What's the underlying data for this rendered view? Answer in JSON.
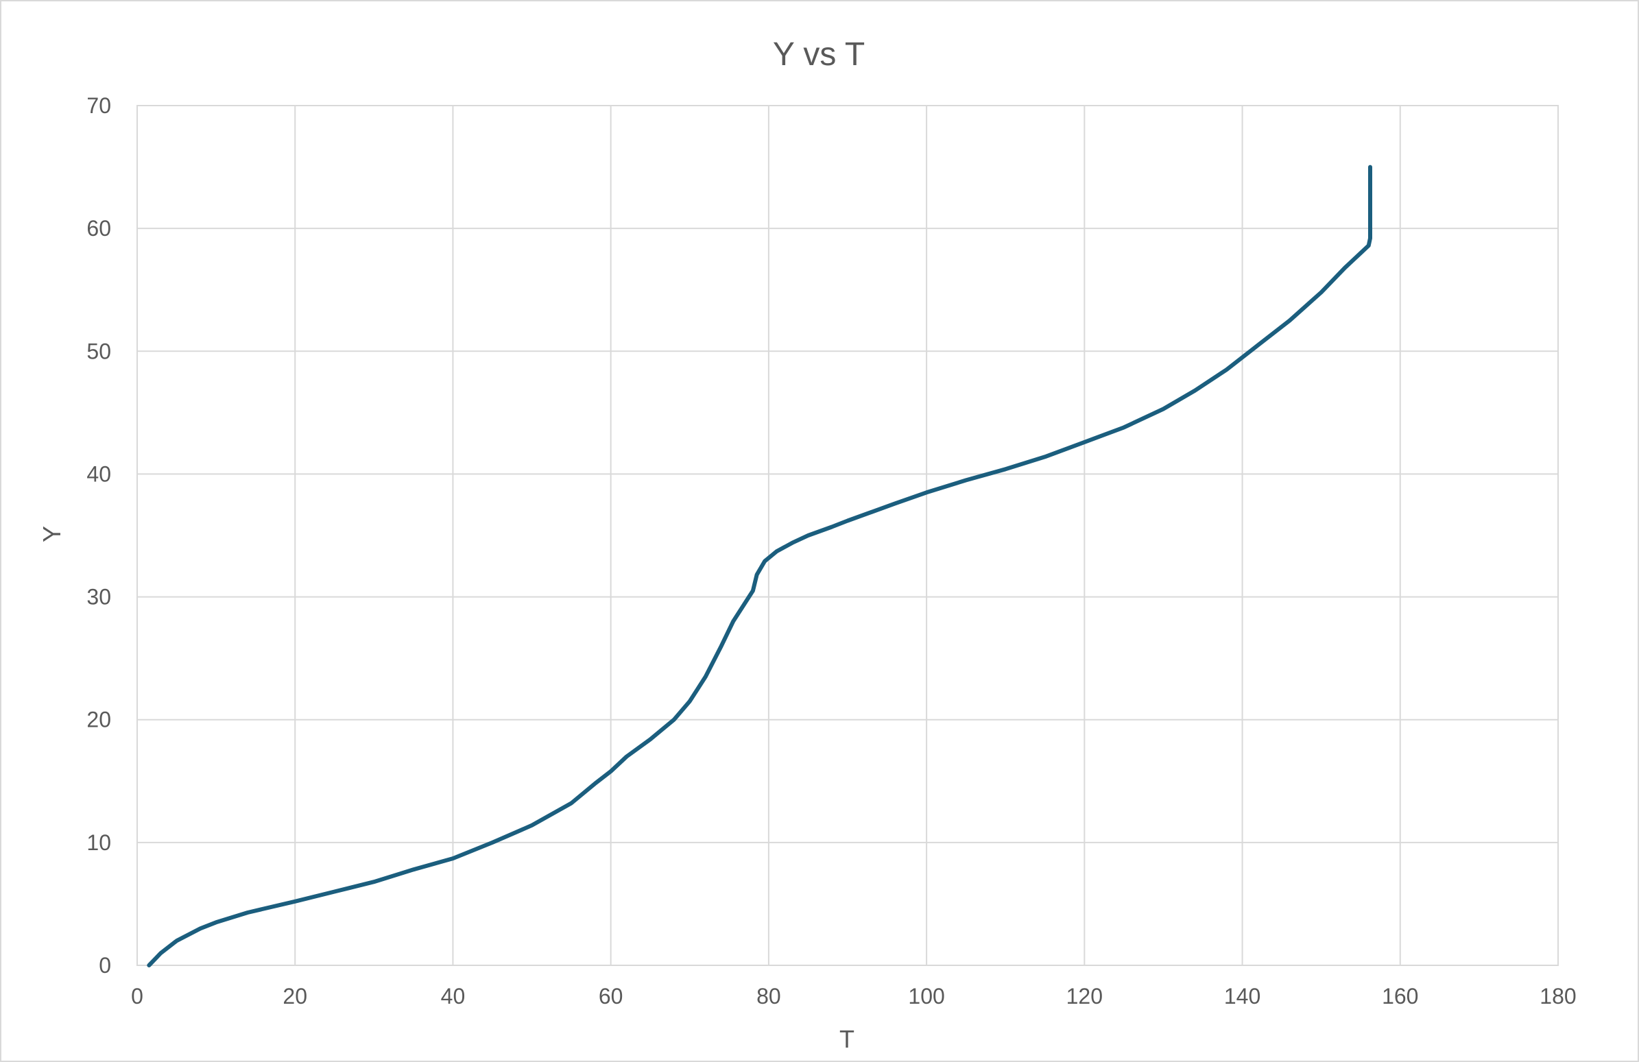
{
  "chart_data": {
    "type": "line",
    "title": "Y vs T",
    "xlabel": "T",
    "ylabel": "Y",
    "xlim": [
      0,
      180
    ],
    "ylim": [
      0,
      70
    ],
    "xticks": [
      0,
      20,
      40,
      60,
      80,
      100,
      120,
      140,
      160,
      180
    ],
    "yticks": [
      0,
      10,
      20,
      30,
      40,
      50,
      60,
      70
    ],
    "grid": true,
    "legend": "none",
    "line_color": "#1b5e7e",
    "series": [
      {
        "x": [
          1.5,
          3,
          5,
          8,
          10,
          14,
          20,
          25,
          30,
          35,
          40,
          45,
          50,
          55,
          58,
          60,
          62,
          65,
          68,
          70,
          72,
          74,
          75.5,
          77,
          78,
          78.5,
          79.5,
          81,
          83,
          85,
          88,
          90,
          93,
          96,
          100,
          105,
          110,
          115,
          120,
          125,
          130,
          134,
          138,
          142,
          146,
          150,
          153,
          155,
          156,
          156.2,
          156.2
        ],
        "y": [
          0,
          1,
          2,
          3,
          3.5,
          4.3,
          5.2,
          6,
          6.8,
          7.8,
          8.7,
          10,
          11.4,
          13.2,
          14.8,
          15.8,
          17,
          18.4,
          20,
          21.5,
          23.5,
          26,
          28,
          29.5,
          30.5,
          31.8,
          32.9,
          33.7,
          34.4,
          35,
          35.7,
          36.2,
          36.9,
          37.6,
          38.5,
          39.5,
          40.4,
          41.4,
          42.6,
          43.8,
          45.3,
          46.8,
          48.5,
          50.5,
          52.5,
          54.8,
          56.8,
          58,
          58.6,
          59.2,
          65
        ]
      }
    ]
  }
}
